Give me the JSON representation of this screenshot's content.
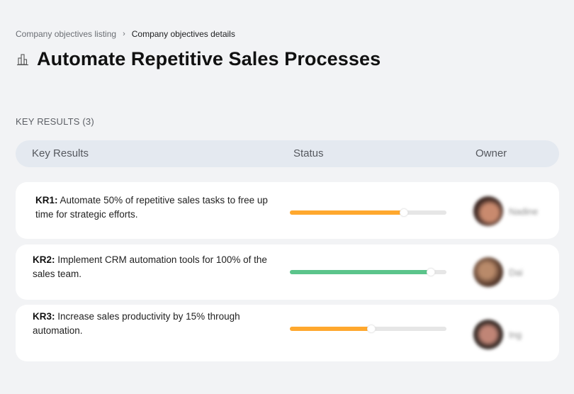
{
  "breadcrumb": {
    "items": [
      {
        "label": "Company objectives listing"
      },
      {
        "label": "Company objectives details"
      }
    ],
    "separator": "›"
  },
  "page": {
    "title": "Automate Repetitive Sales Processes",
    "icon": "buildings-icon"
  },
  "key_results": {
    "section_label": "KEY RESULTS (3)",
    "columns": [
      "Key Results",
      "Status",
      "Owner"
    ],
    "items": [
      {
        "code": "KR1:",
        "text": "Automate 50% of repetitive sales tasks to free up time for strategic efforts.",
        "progress": 73,
        "color": "#ffa82e",
        "owner": "Nadine",
        "avatar_colors": [
          "#3a2520",
          "#c98a6e"
        ]
      },
      {
        "code": "KR2:",
        "text": "Implement CRM automation tools for 100% of the sales team.",
        "progress": 90,
        "color": "#5bc48b",
        "owner": "Dai",
        "avatar_colors": [
          "#4a3024",
          "#b98a6a"
        ]
      },
      {
        "code": "KR3:",
        "text": "Increase sales productivity by 15% through automation.",
        "progress": 52,
        "color": "#ffa82e",
        "owner": "Ing",
        "avatar_colors": [
          "#2f2420",
          "#c08576"
        ]
      }
    ]
  }
}
